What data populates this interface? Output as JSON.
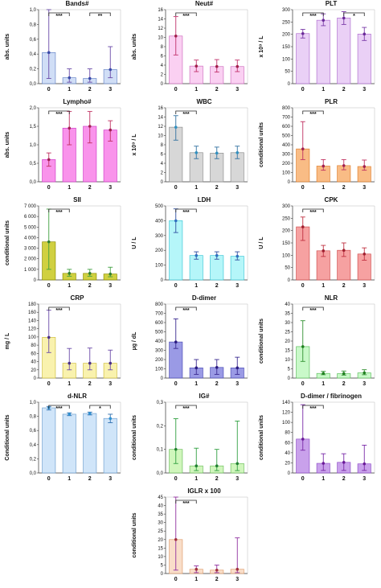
{
  "chart_data": [
    {
      "type": "bar",
      "title": "Bands#",
      "ylabel": "abs. units",
      "categories": [
        "0",
        "1",
        "2",
        "3"
      ],
      "values": [
        0.42,
        0.08,
        0.07,
        0.19
      ],
      "err_low": [
        0.07,
        0.02,
        0.02,
        0.08
      ],
      "err_high": [
        1.0,
        0.2,
        0.2,
        0.5
      ],
      "ylim": [
        0,
        1.0
      ],
      "yticks": [
        "0,0",
        "0,2",
        "0,4",
        "0,6",
        "0,8",
        "1,0"
      ],
      "ytick_values": [
        0,
        0.2,
        0.4,
        0.6,
        0.8,
        1.0
      ],
      "fill": "#c8d8f4",
      "stroke": "#6a88c8",
      "err_color": "#6a4aa8",
      "point_color": "#3a4aa8",
      "brackets": [
        {
          "from": 0,
          "to": 1,
          "label": "***"
        },
        {
          "from": 2,
          "to": 3,
          "label": "**"
        }
      ]
    },
    {
      "type": "bar",
      "title": "Neut#",
      "ylabel": "abs. units",
      "categories": [
        "0",
        "1",
        "2",
        "3"
      ],
      "values": [
        10.3,
        3.8,
        3.7,
        3.7
      ],
      "err_low": [
        6.2,
        2.6,
        2.5,
        2.6
      ],
      "err_high": [
        14.5,
        5.1,
        5.2,
        5.1
      ],
      "ylim": [
        0,
        16
      ],
      "yticks": [
        "0",
        "2",
        "4",
        "6",
        "8",
        "10",
        "12",
        "14",
        "16"
      ],
      "ytick_values": [
        0,
        2,
        4,
        6,
        8,
        10,
        12,
        14,
        16
      ],
      "fill": "#f9c8f0",
      "stroke": "#d070c0",
      "err_color": "#c0306a",
      "point_color": "#a0204a",
      "brackets": [
        {
          "from": 0,
          "to": 1,
          "label": "***"
        }
      ]
    },
    {
      "type": "bar",
      "title": "PLT",
      "ylabel": "x 10⁹ / L",
      "categories": [
        "0",
        "1",
        "2",
        "3"
      ],
      "values": [
        203,
        257,
        266,
        201
      ],
      "err_low": [
        185,
        235,
        240,
        175
      ],
      "err_high": [
        220,
        283,
        292,
        228
      ],
      "ylim": [
        0,
        300
      ],
      "yticks": [
        "0",
        "50",
        "100",
        "150",
        "200",
        "250",
        "300"
      ],
      "ytick_values": [
        0,
        50,
        100,
        150,
        200,
        250,
        300
      ],
      "fill": "#e6c8f4",
      "stroke": "#b070d0",
      "err_color": "#7a3aa8",
      "point_color": "#6a2a98",
      "brackets": [
        {
          "from": 0,
          "to": 1,
          "label": "***"
        },
        {
          "from": 2,
          "to": 3,
          "label": "*"
        }
      ]
    },
    {
      "type": "bar",
      "title": "Lympho#",
      "ylabel": "abs. units",
      "categories": [
        "0",
        "1",
        "2",
        "3"
      ],
      "values": [
        0.6,
        1.45,
        1.5,
        1.4
      ],
      "err_low": [
        0.42,
        1.0,
        1.05,
        1.1
      ],
      "err_high": [
        0.78,
        1.9,
        1.9,
        1.65
      ],
      "ylim": [
        0,
        2.0
      ],
      "yticks": [
        "0,0",
        "0,5",
        "1,0",
        "1,5",
        "2,0"
      ],
      "ytick_values": [
        0,
        0.5,
        1.0,
        1.5,
        2.0
      ],
      "fill": "#f880e8",
      "stroke": "#d040c8",
      "err_color": "#c03060",
      "point_color": "#a02050",
      "brackets": [
        {
          "from": 0,
          "to": 1,
          "label": "***"
        }
      ]
    },
    {
      "type": "bar",
      "title": "WBC",
      "ylabel": "x 10⁹ / L",
      "categories": [
        "0",
        "1",
        "2",
        "3"
      ],
      "values": [
        11.8,
        6.3,
        6.2,
        6.3
      ],
      "err_low": [
        9.0,
        5.0,
        5.0,
        5.0
      ],
      "err_high": [
        14.3,
        7.7,
        7.5,
        7.7
      ],
      "ylim": [
        0,
        16
      ],
      "yticks": [
        "0",
        "2",
        "4",
        "6",
        "8",
        "10",
        "12",
        "14",
        "16"
      ],
      "ytick_values": [
        0,
        2,
        4,
        6,
        8,
        10,
        12,
        14,
        16
      ],
      "fill": "#d0d0d0",
      "stroke": "#909090",
      "err_color": "#3070a0",
      "point_color": "#3090c0",
      "brackets": [
        {
          "from": 0,
          "to": 1,
          "label": "***"
        }
      ]
    },
    {
      "type": "bar",
      "title": "PLR",
      "ylabel": "conditional units",
      "categories": [
        "0",
        "1",
        "2",
        "3"
      ],
      "values": [
        355,
        170,
        175,
        165
      ],
      "err_low": [
        240,
        125,
        130,
        125
      ],
      "err_high": [
        650,
        240,
        240,
        235
      ],
      "ylim": [
        0,
        800
      ],
      "yticks": [
        "0",
        "100",
        "200",
        "300",
        "400",
        "500",
        "600",
        "700",
        "800"
      ],
      "ytick_values": [
        0,
        100,
        200,
        300,
        400,
        500,
        600,
        700,
        800
      ],
      "fill": "#f8b070",
      "stroke": "#e08030",
      "err_color": "#c03060",
      "point_color": "#a02050",
      "brackets": [
        {
          "from": 0,
          "to": 1,
          "label": "***"
        }
      ]
    },
    {
      "type": "bar",
      "title": "SII",
      "ylabel": "conditional units",
      "categories": [
        "0",
        "1",
        "2",
        "3"
      ],
      "values": [
        3600,
        620,
        620,
        560
      ],
      "err_low": [
        1000,
        350,
        350,
        300
      ],
      "err_high": [
        6700,
        1000,
        1000,
        1200
      ],
      "ylim": [
        0,
        7000
      ],
      "yticks": [
        "0",
        "1 000",
        "2 000",
        "3 000",
        "4 000",
        "5 000",
        "6 000",
        "7 000"
      ],
      "ytick_values": [
        0,
        1000,
        2000,
        3000,
        4000,
        5000,
        6000,
        7000
      ],
      "fill": "#c8c820",
      "stroke": "#909000",
      "err_color": "#40a040",
      "point_color": "#308030",
      "brackets": [
        {
          "from": 0,
          "to": 1,
          "label": "***"
        }
      ]
    },
    {
      "type": "bar",
      "title": "LDH",
      "ylabel": "U / L",
      "categories": [
        "0",
        "1",
        "2",
        "3"
      ],
      "values": [
        400,
        165,
        165,
        160
      ],
      "err_low": [
        320,
        140,
        140,
        135
      ],
      "err_high": [
        480,
        190,
        190,
        190
      ],
      "ylim": [
        0,
        500
      ],
      "yticks": [
        "0",
        "100",
        "200",
        "300",
        "400",
        "500"
      ],
      "ytick_values": [
        0,
        100,
        200,
        300,
        400,
        500
      ],
      "fill": "#a8f4f8",
      "stroke": "#40c8d8",
      "err_color": "#3050a0",
      "point_color": "#3070c0",
      "brackets": [
        {
          "from": 0,
          "to": 1,
          "label": "***"
        }
      ]
    },
    {
      "type": "bar",
      "title": "CPK",
      "ylabel": "U / L",
      "categories": [
        "0",
        "1",
        "2",
        "3"
      ],
      "values": [
        215,
        118,
        120,
        105
      ],
      "err_low": [
        160,
        95,
        95,
        80
      ],
      "err_high": [
        255,
        140,
        150,
        130
      ],
      "ylim": [
        0,
        300
      ],
      "yticks": [
        "0",
        "50",
        "100",
        "150",
        "200",
        "250",
        "300"
      ],
      "ytick_values": [
        0,
        50,
        100,
        150,
        200,
        250,
        300
      ],
      "fill": "#f49090",
      "stroke": "#d05050",
      "err_color": "#c03040",
      "point_color": "#a02030",
      "brackets": [
        {
          "from": 0,
          "to": 1,
          "label": "***"
        }
      ]
    },
    {
      "type": "bar",
      "title": "CRP",
      "ylabel": "mg / L",
      "categories": [
        "0",
        "1",
        "2",
        "3"
      ],
      "values": [
        99,
        36,
        36,
        36
      ],
      "err_low": [
        62,
        20,
        20,
        20
      ],
      "err_high": [
        165,
        72,
        73,
        68
      ],
      "ylim": [
        0,
        180
      ],
      "yticks": [
        "0",
        "20",
        "40",
        "60",
        "80",
        "100",
        "120",
        "140",
        "160",
        "180"
      ],
      "ytick_values": [
        0,
        20,
        40,
        60,
        80,
        100,
        120,
        140,
        160,
        180
      ],
      "fill": "#f8f0a0",
      "stroke": "#d0c040",
      "err_color": "#6a4aa8",
      "point_color": "#4a3088",
      "brackets": [
        {
          "from": 0,
          "to": 1,
          "label": "***"
        }
      ]
    },
    {
      "type": "bar",
      "title": "D-dimer",
      "ylabel": "µg / dL",
      "categories": [
        "0",
        "1",
        "2",
        "3"
      ],
      "values": [
        390,
        110,
        115,
        110
      ],
      "err_low": [
        320,
        40,
        40,
        40
      ],
      "err_high": [
        640,
        200,
        200,
        225
      ],
      "ylim": [
        0,
        800
      ],
      "yticks": [
        "0",
        "100",
        "200",
        "300",
        "400",
        "500",
        "600",
        "700",
        "800"
      ],
      "ytick_values": [
        0,
        100,
        200,
        300,
        400,
        500,
        600,
        700,
        800
      ],
      "fill": "#8888e0",
      "stroke": "#5050b8",
      "err_color": "#3a2a90",
      "point_color": "#2a1a80",
      "brackets": [
        {
          "from": 0,
          "to": 1,
          "label": "***"
        }
      ]
    },
    {
      "type": "bar",
      "title": "NLR",
      "ylabel": "conditional units",
      "categories": [
        "0",
        "1",
        "2",
        "3"
      ],
      "values": [
        17,
        2.5,
        2.4,
        2.8
      ],
      "err_low": [
        9,
        1.8,
        1.6,
        1.8
      ],
      "err_high": [
        31,
        3.6,
        3.8,
        4.5
      ],
      "ylim": [
        0,
        40
      ],
      "yticks": [
        "0",
        "5",
        "10",
        "15",
        "20",
        "25",
        "30",
        "35",
        "40"
      ],
      "ytick_values": [
        0,
        5,
        10,
        15,
        20,
        25,
        30,
        35,
        40
      ],
      "fill": "#c0f8c0",
      "stroke": "#60c060",
      "err_color": "#309030",
      "point_color": "#208020",
      "brackets": [
        {
          "from": 0,
          "to": 1,
          "label": "***"
        }
      ]
    },
    {
      "type": "bar",
      "title": "d-NLR",
      "ylabel": "Conditional units",
      "categories": [
        "0",
        "1",
        "2",
        "3"
      ],
      "values": [
        0.92,
        0.83,
        0.84,
        0.77
      ],
      "err_low": [
        0.89,
        0.81,
        0.82,
        0.71
      ],
      "err_high": [
        0.94,
        0.85,
        0.86,
        0.83
      ],
      "ylim": [
        0,
        1.0
      ],
      "yticks": [
        "0,0",
        "0,2",
        "0,4",
        "0,6",
        "0,8",
        "1,0"
      ],
      "ytick_values": [
        0,
        0.2,
        0.4,
        0.6,
        0.8,
        1.0
      ],
      "fill": "#c8e0f8",
      "stroke": "#70a0d0",
      "err_color": "#3070b0",
      "point_color": "#3090d0",
      "brackets": [
        {
          "from": 0,
          "to": 1,
          "label": "***"
        },
        {
          "from": 2,
          "to": 3,
          "label": "*"
        }
      ]
    },
    {
      "type": "bar",
      "title": "IG#",
      "ylabel": "conditional units",
      "categories": [
        "0",
        "1",
        "2",
        "3"
      ],
      "values": [
        0.1,
        0.03,
        0.03,
        0.04
      ],
      "err_low": [
        0.04,
        0.01,
        0.01,
        0.01
      ],
      "err_high": [
        0.23,
        0.105,
        0.1,
        0.22
      ],
      "ylim": [
        0,
        0.3
      ],
      "yticks": [
        "0,0",
        "0,1",
        "0,2",
        "0,3"
      ],
      "ytick_values": [
        0,
        0.1,
        0.2,
        0.3
      ],
      "fill": "#c8f4b0",
      "stroke": "#70c060",
      "err_color": "#30a040",
      "point_color": "#208030",
      "brackets": [
        {
          "from": 0,
          "to": 1,
          "label": "***"
        }
      ]
    },
    {
      "type": "bar",
      "title": "D-dimer / fibrinogen",
      "ylabel": "conditional units",
      "categories": [
        "0",
        "1",
        "2",
        "3"
      ],
      "values": [
        67,
        19,
        21,
        18
      ],
      "err_low": [
        45,
        5,
        5,
        5
      ],
      "err_high": [
        135,
        38,
        38,
        55
      ],
      "ylim": [
        0,
        140
      ],
      "yticks": [
        "0",
        "20",
        "40",
        "60",
        "80",
        "100",
        "120",
        "140"
      ],
      "ytick_values": [
        0,
        20,
        40,
        60,
        80,
        100,
        120,
        140
      ],
      "fill": "#c090e8",
      "stroke": "#9050c8",
      "err_color": "#7a2aa8",
      "point_color": "#6a1a98",
      "brackets": [
        {
          "from": 0,
          "to": 1,
          "label": "***"
        }
      ]
    },
    {
      "type": "bar",
      "title": "IGLR x 100",
      "ylabel": "conditional units",
      "categories": [
        "0",
        "1",
        "2",
        "3"
      ],
      "values": [
        20,
        2.5,
        2.0,
        2.5
      ],
      "err_low": [
        2,
        0.5,
        0.5,
        0.5
      ],
      "err_high": [
        45,
        4.5,
        5.0,
        21
      ],
      "ylim": [
        0,
        45
      ],
      "yticks": [
        "0",
        "5",
        "10",
        "15",
        "20",
        "25",
        "30",
        "35",
        "40",
        "45"
      ],
      "ytick_values": [
        0,
        5,
        10,
        15,
        20,
        25,
        30,
        35,
        40,
        45
      ],
      "fill": "#f8d8c0",
      "stroke": "#e0a070",
      "err_color": "#9030a0",
      "point_color": "#a03040",
      "brackets": [
        {
          "from": 0,
          "to": 1,
          "label": "***"
        }
      ]
    }
  ]
}
